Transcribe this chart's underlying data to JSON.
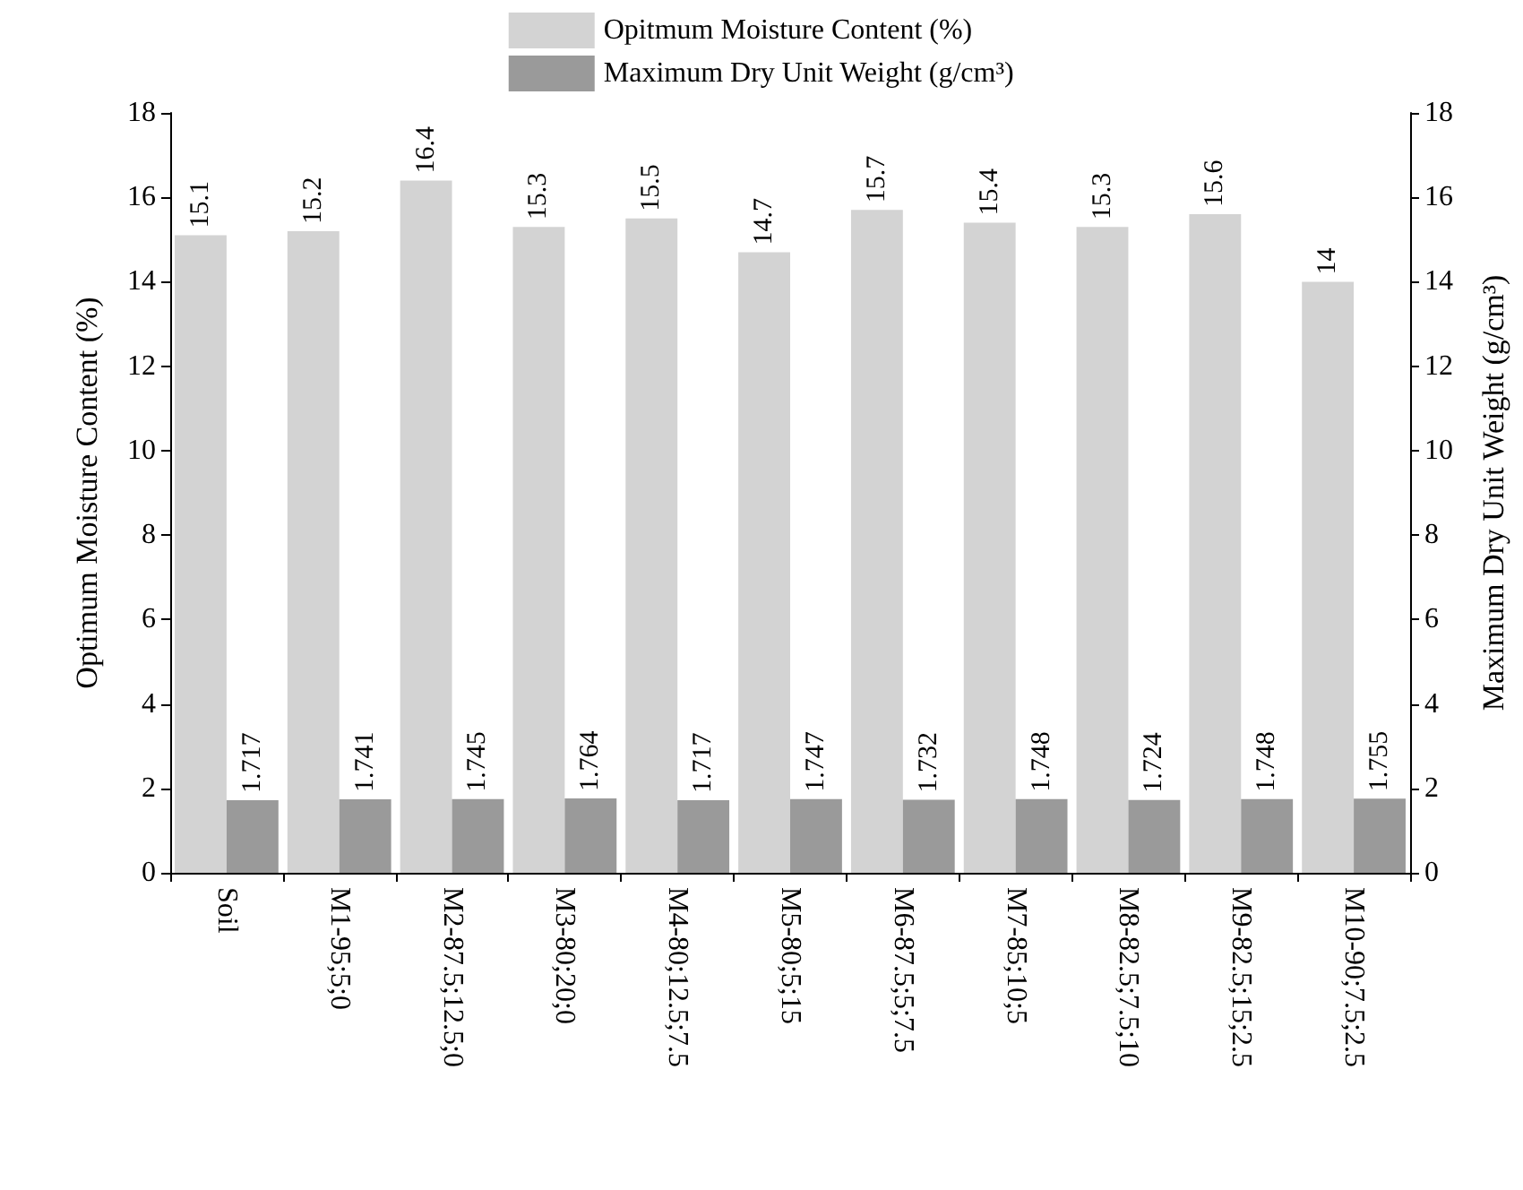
{
  "chart_data": {
    "type": "bar",
    "ylabel": "Optimum Moisture Content (%)",
    "y2label": "Maximum Dry Unit Weight (g/cm³)",
    "categories": [
      "Soil",
      "M1-95;5;0",
      "M2-87.5;12.5;0",
      "M3-80;20;0",
      "M4-80;12.5;7.5",
      "M5-80;5;15",
      "M6-87.5;5;7.5",
      "M7-85;10;5",
      "M8-82.5;7.5;10",
      "M9-82.5;15;2.5",
      "M10-90;7.5;2.5"
    ],
    "series": [
      {
        "name": "Opitmum Moisture Content (%)",
        "color": "#d3d3d3",
        "values": [
          15.1,
          15.2,
          16.4,
          15.3,
          15.5,
          14.7,
          15.7,
          15.4,
          15.3,
          15.6,
          14
        ]
      },
      {
        "name": "Maximum Dry Unit Weight (g/cm³)",
        "color": "#9a9a9a",
        "axis": "y2",
        "values": [
          1.717,
          1.741,
          1.745,
          1.764,
          1.717,
          1.747,
          1.732,
          1.748,
          1.724,
          1.748,
          1.755
        ]
      }
    ],
    "ylim": [
      0,
      18
    ],
    "yticks": [
      0,
      2,
      4,
      6,
      8,
      10,
      12,
      14,
      16,
      18
    ],
    "y2lim": [
      0,
      18
    ],
    "y2ticks": [
      0,
      2,
      4,
      6,
      8,
      10,
      12,
      14,
      16,
      18
    ],
    "data_labels": true,
    "grid": false,
    "legend": "top"
  }
}
